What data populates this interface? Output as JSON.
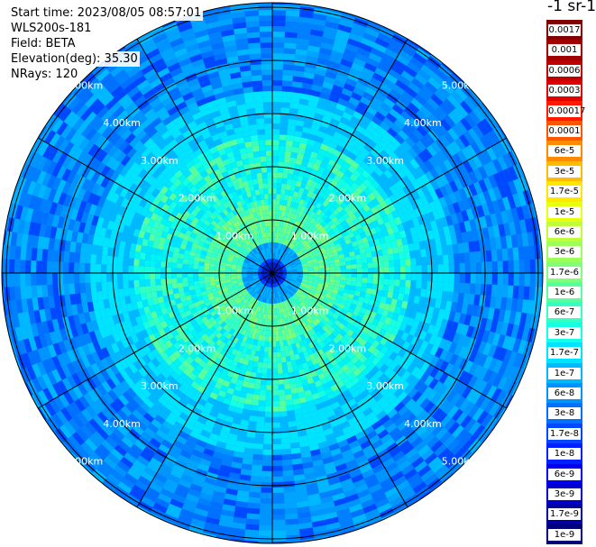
{
  "header": {
    "start_time": "Start time: 2023/08/05 08:57:01",
    "instrument": "WLS200s-181",
    "field": "Field: BETA",
    "elevation": "Elevation(deg): 35.30",
    "nrays": "NRays: 120"
  },
  "colorbar": {
    "unit_title": "-1 sr-1",
    "ticks": [
      {
        "label": "0.0017",
        "color": "#800000"
      },
      {
        "label": "0.001",
        "color": "#a00000"
      },
      {
        "label": "0.0006",
        "color": "#c00000"
      },
      {
        "label": "0.0003",
        "color": "#e00000"
      },
      {
        "label": "0.00017",
        "color": "#ff1a00"
      },
      {
        "label": "0.0001",
        "color": "#ff5500"
      },
      {
        "label": "6e-5",
        "color": "#ff8c00"
      },
      {
        "label": "3e-5",
        "color": "#ffbb00"
      },
      {
        "label": "1.7e-5",
        "color": "#ffe800"
      },
      {
        "label": "1e-5",
        "color": "#e8ff10"
      },
      {
        "label": "6e-6",
        "color": "#c0ff38"
      },
      {
        "label": "3e-6",
        "color": "#9dff5a"
      },
      {
        "label": "1.7e-6",
        "color": "#7dff7a"
      },
      {
        "label": "1e-6",
        "color": "#58ff9f"
      },
      {
        "label": "6e-7",
        "color": "#35ffc2"
      },
      {
        "label": "3e-7",
        "color": "#14ffe3"
      },
      {
        "label": "1.7e-7",
        "color": "#00e4ff"
      },
      {
        "label": "1e-7",
        "color": "#00b8ff"
      },
      {
        "label": "6e-8",
        "color": "#0094ff"
      },
      {
        "label": "3e-8",
        "color": "#0070ff"
      },
      {
        "label": "1.7e-8",
        "color": "#0048ff"
      },
      {
        "label": "1e-8",
        "color": "#0020ff"
      },
      {
        "label": "6e-9",
        "color": "#0000f0"
      },
      {
        "label": "3e-9",
        "color": "#0000c8"
      },
      {
        "label": "1.7e-9",
        "color": "#0000a0"
      },
      {
        "label": "1e-9",
        "color": "#000078"
      }
    ]
  },
  "range_rings_km": [
    1,
    2,
    3,
    4,
    5
  ],
  "ring_labels": [
    "1.00km",
    "2.00km",
    "3.00km",
    "4.00km",
    "5.00km"
  ],
  "spoke_angles_deg": [
    0,
    30,
    60,
    90,
    120,
    150,
    180,
    210,
    240,
    270,
    300,
    330
  ]
}
